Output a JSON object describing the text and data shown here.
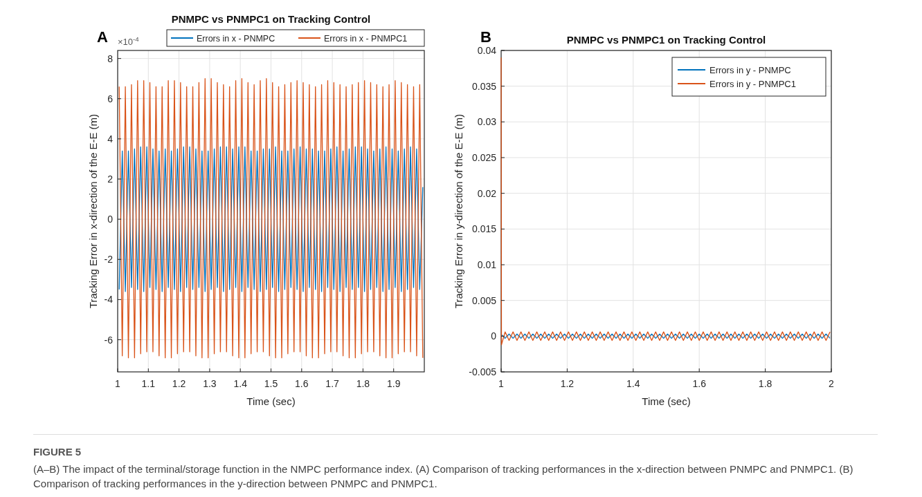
{
  "chart_data": [
    {
      "type": "line",
      "title": "PNMPC vs PNMPC1  on Tracking Control",
      "xlabel": "Time (sec)",
      "ylabel": "Tracking Error in x-direction of the E-E (m)",
      "annotations": [
        "A",
        "×10$^{-4}$",
        "FIGURE 5",
        "(A–B) The impact of the terminal/storage function in the NMPC performance index. (A) Comparison of tracking performances in the x-direction between PNMPC and PNMPC1. (B) Comparison of tracking performances in the y-direction between PNMPC and PNMPC1."
      ],
      "x": [
        1.005,
        1.015,
        1.025,
        1.035,
        1.045,
        1.055,
        1.065,
        1.075,
        1.085,
        1.095,
        1.105,
        1.115,
        1.125,
        1.135,
        1.145,
        1.155,
        1.165,
        1.175,
        1.185,
        1.195,
        1.205,
        1.215,
        1.225,
        1.235,
        1.245,
        1.255,
        1.265,
        1.275,
        1.285,
        1.295,
        1.305,
        1.315,
        1.325,
        1.335,
        1.345,
        1.355,
        1.365,
        1.375,
        1.385,
        1.395,
        1.405,
        1.415,
        1.425,
        1.435,
        1.445,
        1.455,
        1.465,
        1.475,
        1.485,
        1.495,
        1.505,
        1.515,
        1.525,
        1.535,
        1.545,
        1.555,
        1.565,
        1.575,
        1.585,
        1.595,
        1.605,
        1.615,
        1.625,
        1.635,
        1.645,
        1.655,
        1.665,
        1.675,
        1.685,
        1.695,
        1.705,
        1.715,
        1.725,
        1.735,
        1.745,
        1.755,
        1.765,
        1.775,
        1.785,
        1.795,
        1.805,
        1.815,
        1.825,
        1.835,
        1.845,
        1.855,
        1.865,
        1.875,
        1.885,
        1.895,
        1.905,
        1.915,
        1.925,
        1.935,
        1.945,
        1.955,
        1.965,
        1.975,
        1.985,
        1.995
      ],
      "series": [
        {
          "name": "Errors in x - PNMPC",
          "color": "#0072bd",
          "values": [
            -3.5,
            3.4,
            -3.6,
            3.4,
            -3.4,
            3.5,
            -3.5,
            3.6,
            -3.6,
            3.6,
            -3.4,
            3.5,
            -3.5,
            3.4,
            -3.6,
            3.5,
            -3.4,
            3.4,
            -3.5,
            3.5,
            -3.6,
            3.6,
            -3.4,
            3.6,
            -3.5,
            3.5,
            -3.4,
            3.4,
            -3.6,
            3.4,
            -3.5,
            3.5,
            -3.4,
            3.6,
            -3.6,
            3.6,
            -3.5,
            3.5,
            -3.4,
            3.6,
            -3.6,
            3.6,
            -3.4,
            3.4,
            -3.5,
            3.4,
            -3.6,
            3.5,
            -3.5,
            3.5,
            -3.4,
            3.6,
            -3.6,
            3.4,
            -3.5,
            3.4,
            -3.4,
            3.5,
            -3.5,
            3.6,
            -3.6,
            3.5,
            -3.4,
            3.5,
            -3.5,
            3.4,
            -3.6,
            3.4,
            -3.4,
            3.5,
            -3.5,
            3.6,
            -3.6,
            3.4,
            -3.4,
            3.5,
            -3.5,
            3.6,
            -3.4,
            3.6,
            -3.6,
            3.5,
            -3.5,
            3.4,
            -3.4,
            3.5,
            -3.6,
            3.6,
            -3.5,
            3.5,
            -3.4,
            3.4,
            -3.6,
            3.5,
            -3.5,
            3.6,
            -3.4,
            3.5,
            -3.5,
            1.6
          ]
        },
        {
          "name": "Errors in x - PNMPC1",
          "color": "#d95319",
          "values": [
            6.6,
            -6.8,
            6.6,
            -6.9,
            6.7,
            -6.9,
            6.9,
            -6.7,
            6.9,
            -6.6,
            6.8,
            -6.6,
            6.6,
            -6.8,
            6.6,
            -6.9,
            6.9,
            -6.9,
            6.9,
            -6.7,
            6.8,
            -6.6,
            6.6,
            -6.6,
            6.6,
            -6.8,
            6.8,
            -6.9,
            7.0,
            -6.9,
            7.0,
            -6.7,
            6.8,
            -6.6,
            6.7,
            -6.6,
            6.6,
            -6.8,
            6.9,
            -6.9,
            7.0,
            -6.9,
            6.8,
            -6.7,
            6.7,
            -6.6,
            6.9,
            -6.6,
            7.0,
            -6.8,
            6.8,
            -6.9,
            6.6,
            -6.9,
            6.7,
            -6.7,
            6.8,
            -6.6,
            6.9,
            -6.6,
            6.8,
            -6.8,
            6.7,
            -6.9,
            6.6,
            -6.9,
            6.7,
            -6.7,
            6.9,
            -6.6,
            6.8,
            -6.6,
            6.7,
            -6.8,
            6.6,
            -6.9,
            6.7,
            -6.9,
            6.8,
            -6.7,
            6.9,
            -6.6,
            6.8,
            -6.6,
            6.7,
            -6.8,
            6.6,
            -6.9,
            6.7,
            -6.9,
            6.9,
            -6.7,
            6.8,
            -6.6,
            6.7,
            -6.6,
            6.6,
            -6.8,
            6.7,
            -6.9
          ]
        }
      ],
      "xlim": [
        1,
        2
      ],
      "xticks": [
        1,
        1.1,
        1.2,
        1.3,
        1.4,
        1.5,
        1.6,
        1.7,
        1.8,
        1.9
      ],
      "ylim": [
        -7.6,
        8.4
      ],
      "yticks": [
        -6,
        -4,
        -2,
        0,
        2,
        4,
        6,
        8
      ],
      "grid": true,
      "legend": "top"
    },
    {
      "type": "line",
      "title": "PNMPC vs PNMPC1  on Tracking Control",
      "xlabel": "Time (sec)",
      "ylabel": "Tracking Error in y-direction of the E-E (m)",
      "annotations": [
        "B"
      ],
      "x": [
        1,
        1.001,
        1.012,
        1.024,
        1.036,
        1.048,
        1.06,
        1.072,
        1.084,
        1.096,
        1.108,
        1.12,
        1.132,
        1.144,
        1.156,
        1.168,
        1.18,
        1.192,
        1.204,
        1.216,
        1.228,
        1.24,
        1.252,
        1.264,
        1.276,
        1.288,
        1.3,
        1.312,
        1.324,
        1.336,
        1.348,
        1.36,
        1.372,
        1.384,
        1.396,
        1.408,
        1.42,
        1.432,
        1.444,
        1.456,
        1.468,
        1.48,
        1.492,
        1.504,
        1.516,
        1.528,
        1.54,
        1.552,
        1.564,
        1.576,
        1.588,
        1.6,
        1.612,
        1.624,
        1.636,
        1.648,
        1.66,
        1.672,
        1.684,
        1.696,
        1.708,
        1.72,
        1.732,
        1.744,
        1.756,
        1.768,
        1.78,
        1.792,
        1.804,
        1.816,
        1.828,
        1.84,
        1.852,
        1.864,
        1.876,
        1.888,
        1.9,
        1.912,
        1.924,
        1.936,
        1.948,
        1.96,
        1.972,
        1.984,
        1.996
      ],
      "series": [
        {
          "name": "Errors in y - PNMPC",
          "color": "#0072bd",
          "values": [
            null,
            0.0002,
            -0.0003,
            0.0003,
            -0.0003,
            0.0003,
            -0.0003,
            0.0003,
            -0.0003,
            0.0003,
            -0.0003,
            0.0003,
            -0.0003,
            0.0003,
            -0.0003,
            0.0003,
            -0.0003,
            0.0003,
            -0.0003,
            0.0003,
            -0.0003,
            0.0003,
            -0.0003,
            0.0003,
            -0.0003,
            0.0003,
            -0.0003,
            0.0003,
            -0.0003,
            0.0003,
            -0.0003,
            0.0003,
            -0.0003,
            0.0003,
            -0.0003,
            0.0003,
            -0.0003,
            0.0003,
            -0.0003,
            0.0003,
            -0.0003,
            0.0003,
            -0.0003,
            0.0003,
            -0.0003,
            0.0003,
            -0.0003,
            0.0003,
            -0.0003,
            0.0003,
            -0.0003,
            0.0003,
            -0.0003,
            0.0003,
            -0.0003,
            0.0003,
            -0.0003,
            0.0003,
            -0.0003,
            0.0003,
            -0.0003,
            0.0003,
            -0.0003,
            0.0003,
            -0.0003,
            0.0003,
            -0.0003,
            0.0003,
            -0.0003,
            0.0003,
            -0.0003,
            0.0003,
            -0.0003,
            0.0003,
            -0.0003,
            0.0003,
            -0.0003,
            0.0003,
            -0.0003,
            0.0003,
            -0.0003,
            0.0003,
            -0.0003,
            0.0003,
            -0.0003
          ]
        },
        {
          "name": "Errors in y - PNMPC1",
          "color": "#d95319",
          "values": [
            0.039,
            -0.0012,
            0.0006,
            -0.0006,
            0.0006,
            -0.0006,
            0.0006,
            -0.0006,
            0.0006,
            -0.0006,
            0.0006,
            -0.0006,
            0.0006,
            -0.0006,
            0.0006,
            -0.0006,
            0.0006,
            -0.0006,
            0.0006,
            -0.0006,
            0.0006,
            -0.0006,
            0.0006,
            -0.0006,
            0.0006,
            -0.0006,
            0.0006,
            -0.0006,
            0.0006,
            -0.0006,
            0.0006,
            -0.0006,
            0.0006,
            -0.0006,
            0.0006,
            -0.0006,
            0.0006,
            -0.0006,
            0.0006,
            -0.0006,
            0.0006,
            -0.0006,
            0.0006,
            -0.0006,
            0.0006,
            -0.0006,
            0.0006,
            -0.0006,
            0.0006,
            -0.0006,
            0.0006,
            -0.0006,
            0.0006,
            -0.0006,
            0.0006,
            -0.0006,
            0.0006,
            -0.0006,
            0.0006,
            -0.0006,
            0.0006,
            -0.0006,
            0.0006,
            -0.0006,
            0.0006,
            -0.0006,
            0.0006,
            -0.0006,
            0.0006,
            -0.0006,
            0.0006,
            -0.0006,
            0.0006,
            -0.0006,
            0.0006,
            -0.0006,
            0.0006,
            -0.0006,
            0.0006,
            -0.0006,
            0.0006,
            -0.0006,
            0.0006,
            -0.0006,
            0.0006
          ]
        }
      ],
      "xlim": [
        1,
        2
      ],
      "xticks": [
        1,
        1.2,
        1.4,
        1.6,
        1.8,
        2
      ],
      "ylim": [
        -0.005,
        0.04
      ],
      "yticks": [
        -0.005,
        0,
        0.005,
        0.01,
        0.015,
        0.02,
        0.025,
        0.03,
        0.035,
        0.04
      ],
      "grid": true,
      "legend": "top right"
    }
  ]
}
